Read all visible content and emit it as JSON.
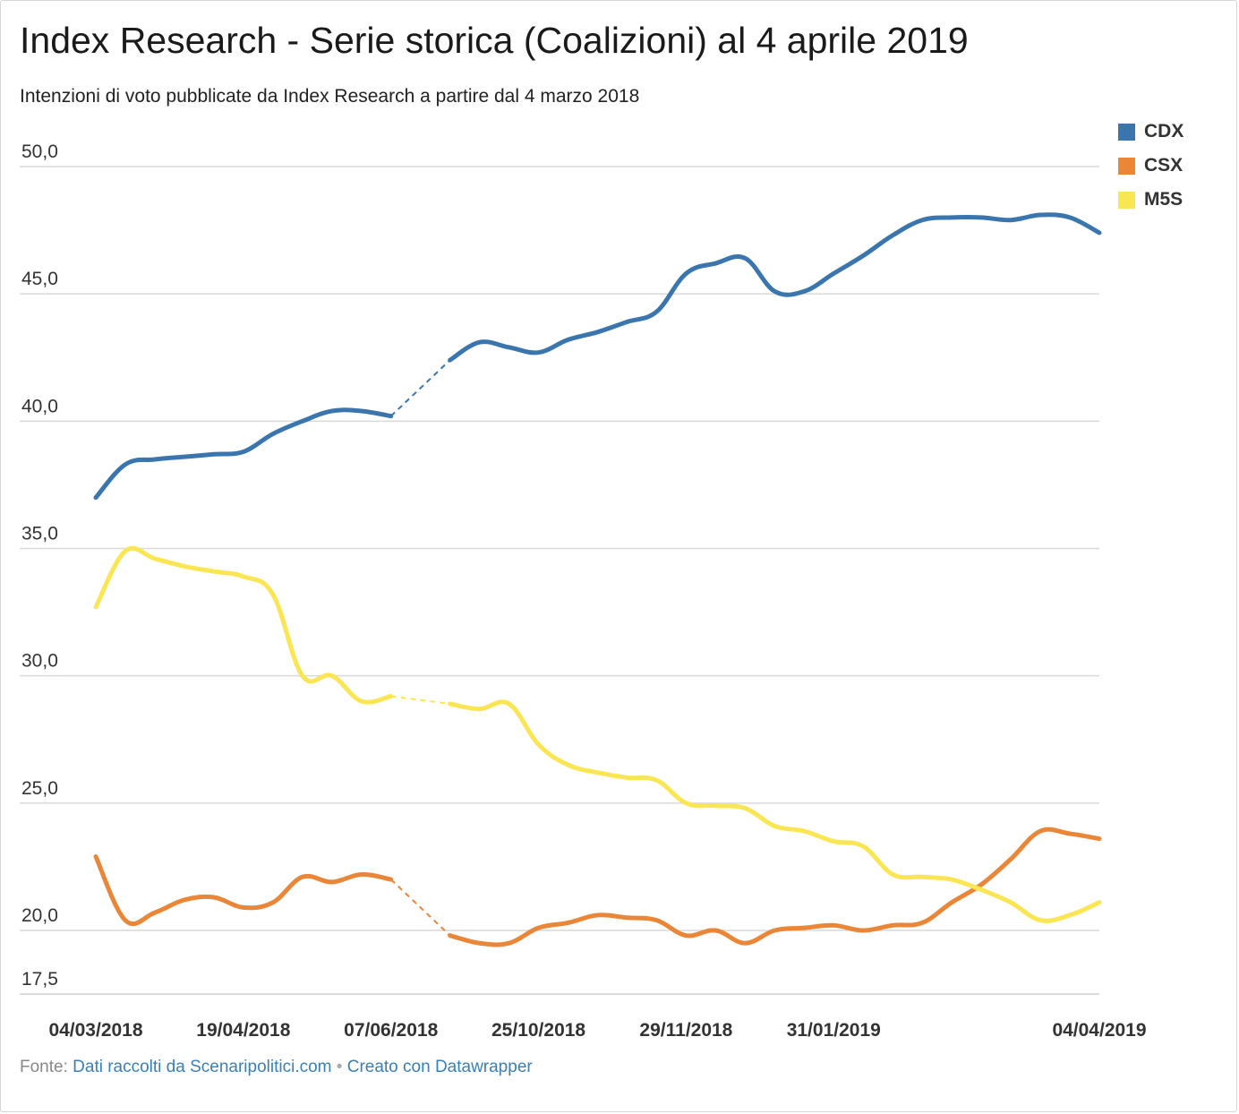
{
  "title": "Index Research - Serie storica (Coalizioni) al 4 aprile 2019",
  "subtitle": "Intenzioni di voto pubblicate da Index Research a partire dal 4 marzo 2018",
  "footer": {
    "prefix": "Fonte:",
    "source_link": "Dati raccolti da Scenaripolitici.com",
    "separator": "•",
    "tool_link": "Creato con Datawrapper"
  },
  "chart_data": {
    "type": "line",
    "title": "Index Research - Serie storica (Coalizioni) al 4 aprile 2019",
    "xlabel": "",
    "ylabel": "",
    "ylim": [
      17.5,
      50.0
    ],
    "yticks": [
      "50,0",
      "45,0",
      "40,0",
      "35,0",
      "30,0",
      "25,0",
      "20,0",
      "17,5"
    ],
    "ytick_values": [
      50,
      45,
      40,
      35,
      30,
      25,
      20,
      17.5
    ],
    "xticks": [
      "04/03/2018",
      "19/04/2018",
      "07/06/2018",
      "25/10/2018",
      "29/11/2018",
      "31/01/2019",
      "04/04/2019"
    ],
    "xtick_positions": [
      0,
      5,
      10,
      15,
      20,
      25,
      34
    ],
    "x_count": 35,
    "gap": {
      "from_index": 10,
      "to_index": 12,
      "style": "dashed"
    },
    "grid": true,
    "legend_position": "top-right",
    "series": [
      {
        "name": "CDX",
        "color": "#3a76ad",
        "values": [
          37.0,
          38.3,
          38.5,
          38.6,
          38.7,
          38.8,
          39.5,
          40.0,
          40.4,
          40.4,
          40.2,
          null,
          42.4,
          43.1,
          42.9,
          42.7,
          43.2,
          43.5,
          43.9,
          44.3,
          45.8,
          46.2,
          46.4,
          45.1,
          45.1,
          45.8,
          46.5,
          47.3,
          47.9,
          48.0,
          48.0,
          47.9,
          48.1,
          48.0,
          47.4
        ]
      },
      {
        "name": "CSX",
        "color": "#e98638",
        "values": [
          22.9,
          20.4,
          20.7,
          21.2,
          21.3,
          20.9,
          21.1,
          22.1,
          21.9,
          22.2,
          22.0,
          null,
          19.8,
          19.5,
          19.5,
          20.1,
          20.3,
          20.6,
          20.5,
          20.4,
          19.8,
          20.0,
          19.5,
          20.0,
          20.1,
          20.2,
          20.0,
          20.2,
          20.3,
          21.1,
          21.8,
          22.8,
          23.9,
          23.8,
          23.6
        ]
      },
      {
        "name": "M5S",
        "color": "#fae553",
        "values": [
          32.7,
          34.9,
          34.6,
          34.3,
          34.1,
          33.9,
          33.2,
          30.0,
          30.0,
          29.0,
          29.2,
          null,
          28.9,
          28.7,
          28.9,
          27.3,
          26.5,
          26.2,
          26.0,
          25.9,
          25.0,
          24.9,
          24.8,
          24.1,
          23.9,
          23.5,
          23.3,
          22.2,
          22.1,
          22.0,
          21.6,
          21.1,
          20.4,
          20.6,
          21.1
        ]
      }
    ]
  }
}
